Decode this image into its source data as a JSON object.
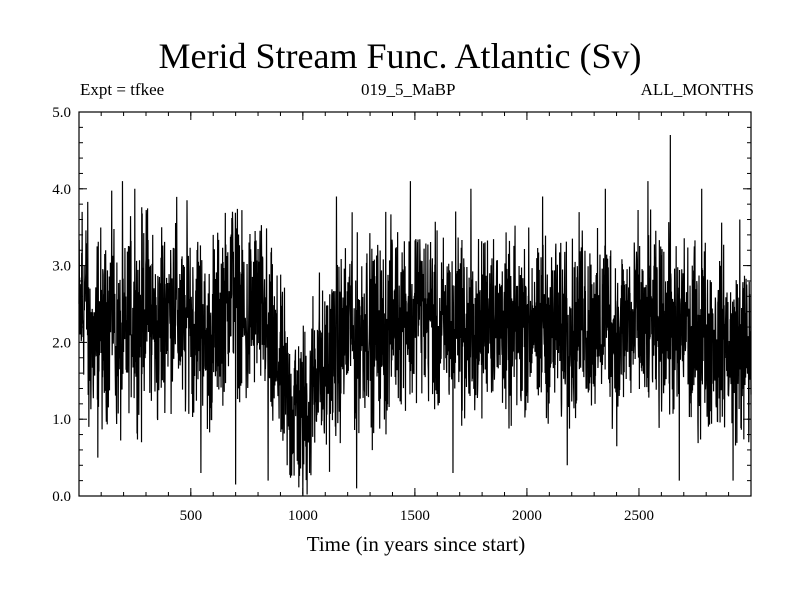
{
  "header": {
    "title": "Merid Stream Func. Atlantic (Sv)",
    "experiment": "Expt = tfkee",
    "run": "019_5_MaBP",
    "period": "ALL_MONTHS"
  },
  "chart_data": {
    "type": "line",
    "title": "Merid Stream Func. Atlantic (Sv)",
    "xlabel": "Time (in years since start)",
    "ylabel": "",
    "xlim": [
      1,
      3000
    ],
    "ylim": [
      0.0,
      5.0
    ],
    "x_ticks": [
      500,
      1000,
      1500,
      2000,
      2500
    ],
    "x_tick_labels": [
      "500",
      "1000",
      "1500",
      "2000",
      "2500"
    ],
    "y_ticks": [
      0.0,
      1.0,
      2.0,
      3.0,
      4.0,
      5.0
    ],
    "y_tick_labels": [
      "0.0",
      "1.0",
      "2.0",
      "3.0",
      "4.0",
      "5.0"
    ],
    "grid": false,
    "line_color": "#000000",
    "series": [
      {
        "x_step": 20,
        "x_start": 1,
        "values": [
          2.4,
          2.6,
          2.1,
          1.9,
          2.3,
          2.0,
          2.2,
          2.5,
          2.0,
          1.8,
          2.1,
          2.4,
          2.2,
          2.3,
          2.5,
          2.6,
          2.2,
          2.0,
          2.3,
          2.5,
          2.4,
          2.6,
          2.3,
          2.1,
          2.5,
          2.2,
          2.4,
          2.3,
          1.9,
          2.0,
          2.2,
          2.4,
          2.5,
          2.7,
          2.8,
          2.6,
          2.3,
          2.1,
          2.4,
          2.5,
          2.4,
          2.3,
          2.0,
          1.8,
          1.7,
          1.5,
          1.3,
          1.1,
          1.2,
          1.0,
          1.1,
          1.3,
          1.6,
          1.8,
          1.5,
          1.7,
          1.9,
          1.8,
          2.0,
          2.1,
          2.3,
          2.0,
          2.1,
          2.2,
          2.3,
          2.0,
          2.2,
          2.1,
          2.0,
          2.3,
          2.4,
          2.3,
          2.5,
          2.4,
          2.2,
          2.6,
          2.5,
          2.3,
          2.4,
          2.2,
          2.0,
          2.2,
          2.3,
          2.1,
          2.5,
          2.3,
          2.1,
          2.0,
          2.2,
          2.1,
          2.3,
          2.5,
          2.4,
          2.2,
          2.3,
          2.1,
          2.0,
          2.2,
          2.1,
          2.3,
          2.2,
          2.4,
          2.0,
          2.3,
          2.2,
          2.1,
          2.3,
          2.0,
          2.4,
          2.2,
          2.1,
          2.3,
          2.5,
          2.2,
          2.3,
          2.1,
          2.2,
          2.4,
          2.3,
          2.1,
          2.0,
          2.2,
          2.3,
          2.1,
          2.4,
          2.2,
          2.0,
          2.3,
          2.2,
          2.1,
          2.3,
          2.2,
          2.1,
          2.0,
          2.2,
          2.3,
          1.9,
          2.1,
          2.0,
          2.2,
          2.0,
          2.1,
          1.9,
          2.2,
          2.0,
          1.9
        ]
      }
    ],
    "extremes": [
      {
        "x": 15,
        "y": 3.7
      },
      {
        "x": 45,
        "y": 0.9
      },
      {
        "x": 85,
        "y": 0.5
      },
      {
        "x": 120,
        "y": 3.2
      },
      {
        "x": 195,
        "y": 4.1
      },
      {
        "x": 250,
        "y": 4.0
      },
      {
        "x": 280,
        "y": 0.7
      },
      {
        "x": 330,
        "y": 3.4
      },
      {
        "x": 370,
        "y": 3.5
      },
      {
        "x": 545,
        "y": 0.3
      },
      {
        "x": 600,
        "y": 3.4
      },
      {
        "x": 700,
        "y": 0.15
      },
      {
        "x": 760,
        "y": 3.3
      },
      {
        "x": 845,
        "y": 0.2
      },
      {
        "x": 1030,
        "y": 0.3
      },
      {
        "x": 1150,
        "y": 3.9
      },
      {
        "x": 1240,
        "y": 0.1
      },
      {
        "x": 1370,
        "y": 3.7
      },
      {
        "x": 1480,
        "y": 4.1
      },
      {
        "x": 1670,
        "y": 0.3
      },
      {
        "x": 1750,
        "y": 4.0
      },
      {
        "x": 2070,
        "y": 3.9
      },
      {
        "x": 2180,
        "y": 0.4
      },
      {
        "x": 2350,
        "y": 4.0
      },
      {
        "x": 2540,
        "y": 4.1
      },
      {
        "x": 2640,
        "y": 4.7
      },
      {
        "x": 2680,
        "y": 0.2
      },
      {
        "x": 2780,
        "y": 4.0
      },
      {
        "x": 2920,
        "y": 0.2
      },
      {
        "x": 2950,
        "y": 3.6
      },
      {
        "x": 2990,
        "y": 0.7
      }
    ]
  }
}
